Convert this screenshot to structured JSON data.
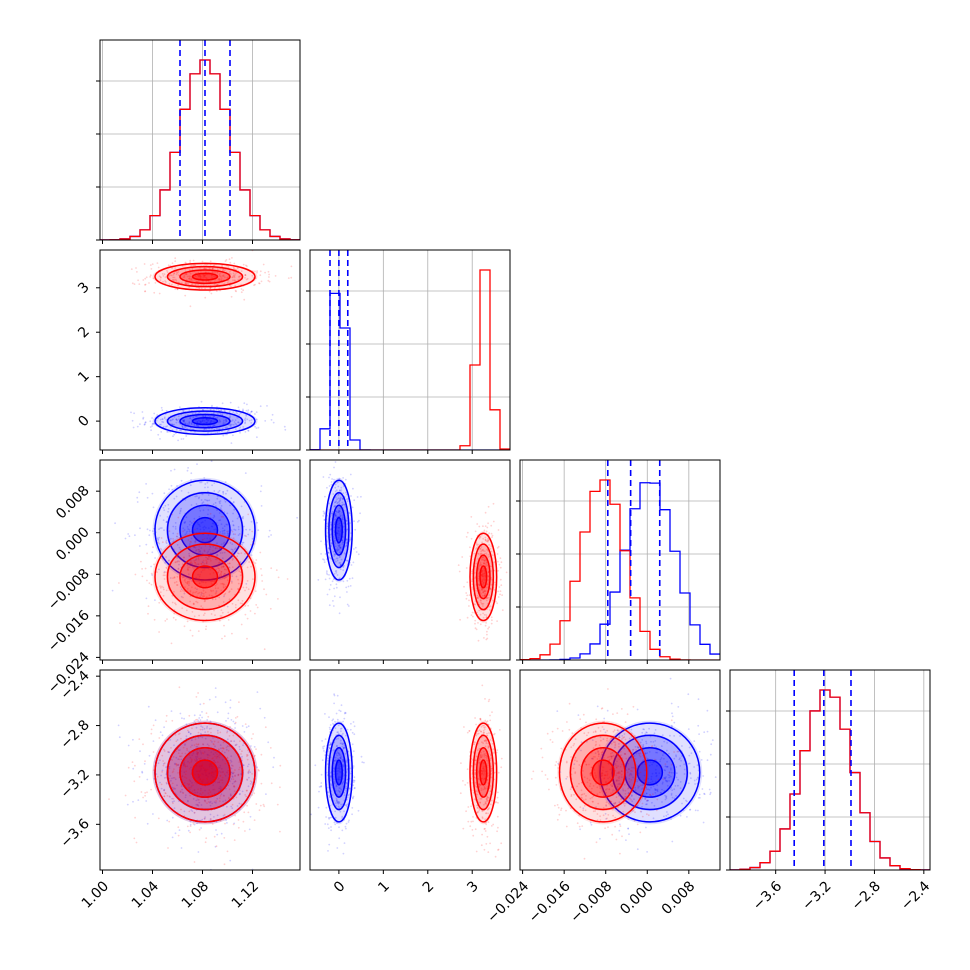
{
  "chart_data": {
    "type": "corner",
    "parameters": [
      {
        "ticks": [
          "1.00",
          "1.04",
          "1.08",
          "1.12"
        ],
        "tick_values": [
          1.0,
          1.04,
          1.08,
          1.12
        ],
        "range": [
          0.998,
          1.158
        ]
      },
      {
        "ticks": [
          "0",
          "1",
          "2",
          "3"
        ],
        "tick_values": [
          0,
          1,
          2,
          3
        ],
        "range": [
          -0.65,
          3.85
        ]
      },
      {
        "ticks": [
          "−0.024",
          "−0.016",
          "−0.008",
          "0.000",
          "0.008"
        ],
        "tick_values": [
          -0.024,
          -0.016,
          -0.008,
          0.0,
          0.008
        ],
        "range": [
          -0.0245,
          0.014
        ]
      },
      {
        "ticks": [
          "−2.4",
          "−2.8",
          "−3.2",
          "−3.6"
        ],
        "tick_values": [
          -2.4,
          -2.8,
          -3.2,
          -3.6
        ],
        "range": [
          -3.97,
          -2.35
        ]
      }
    ],
    "series": [
      {
        "color": "#0000ff",
        "means": [
          1.082,
          0.0,
          0.0005,
          -3.18
        ],
        "sds": [
          0.02,
          0.15,
          0.0048,
          0.2
        ]
      },
      {
        "color": "#ff0000",
        "means": [
          1.082,
          3.25,
          -0.0085,
          -3.18
        ],
        "sds": [
          0.02,
          0.15,
          0.0042,
          0.2
        ]
      }
    ],
    "quantile_lines": {
      "color": "#0000ff",
      "values": [
        [
          1.062,
          1.082,
          1.102
        ],
        [
          -0.2,
          0.0,
          0.2
        ],
        [
          -0.0076,
          -0.0032,
          0.0024
        ],
        [
          -3.45,
          -3.21,
          -2.99
        ]
      ]
    }
  }
}
